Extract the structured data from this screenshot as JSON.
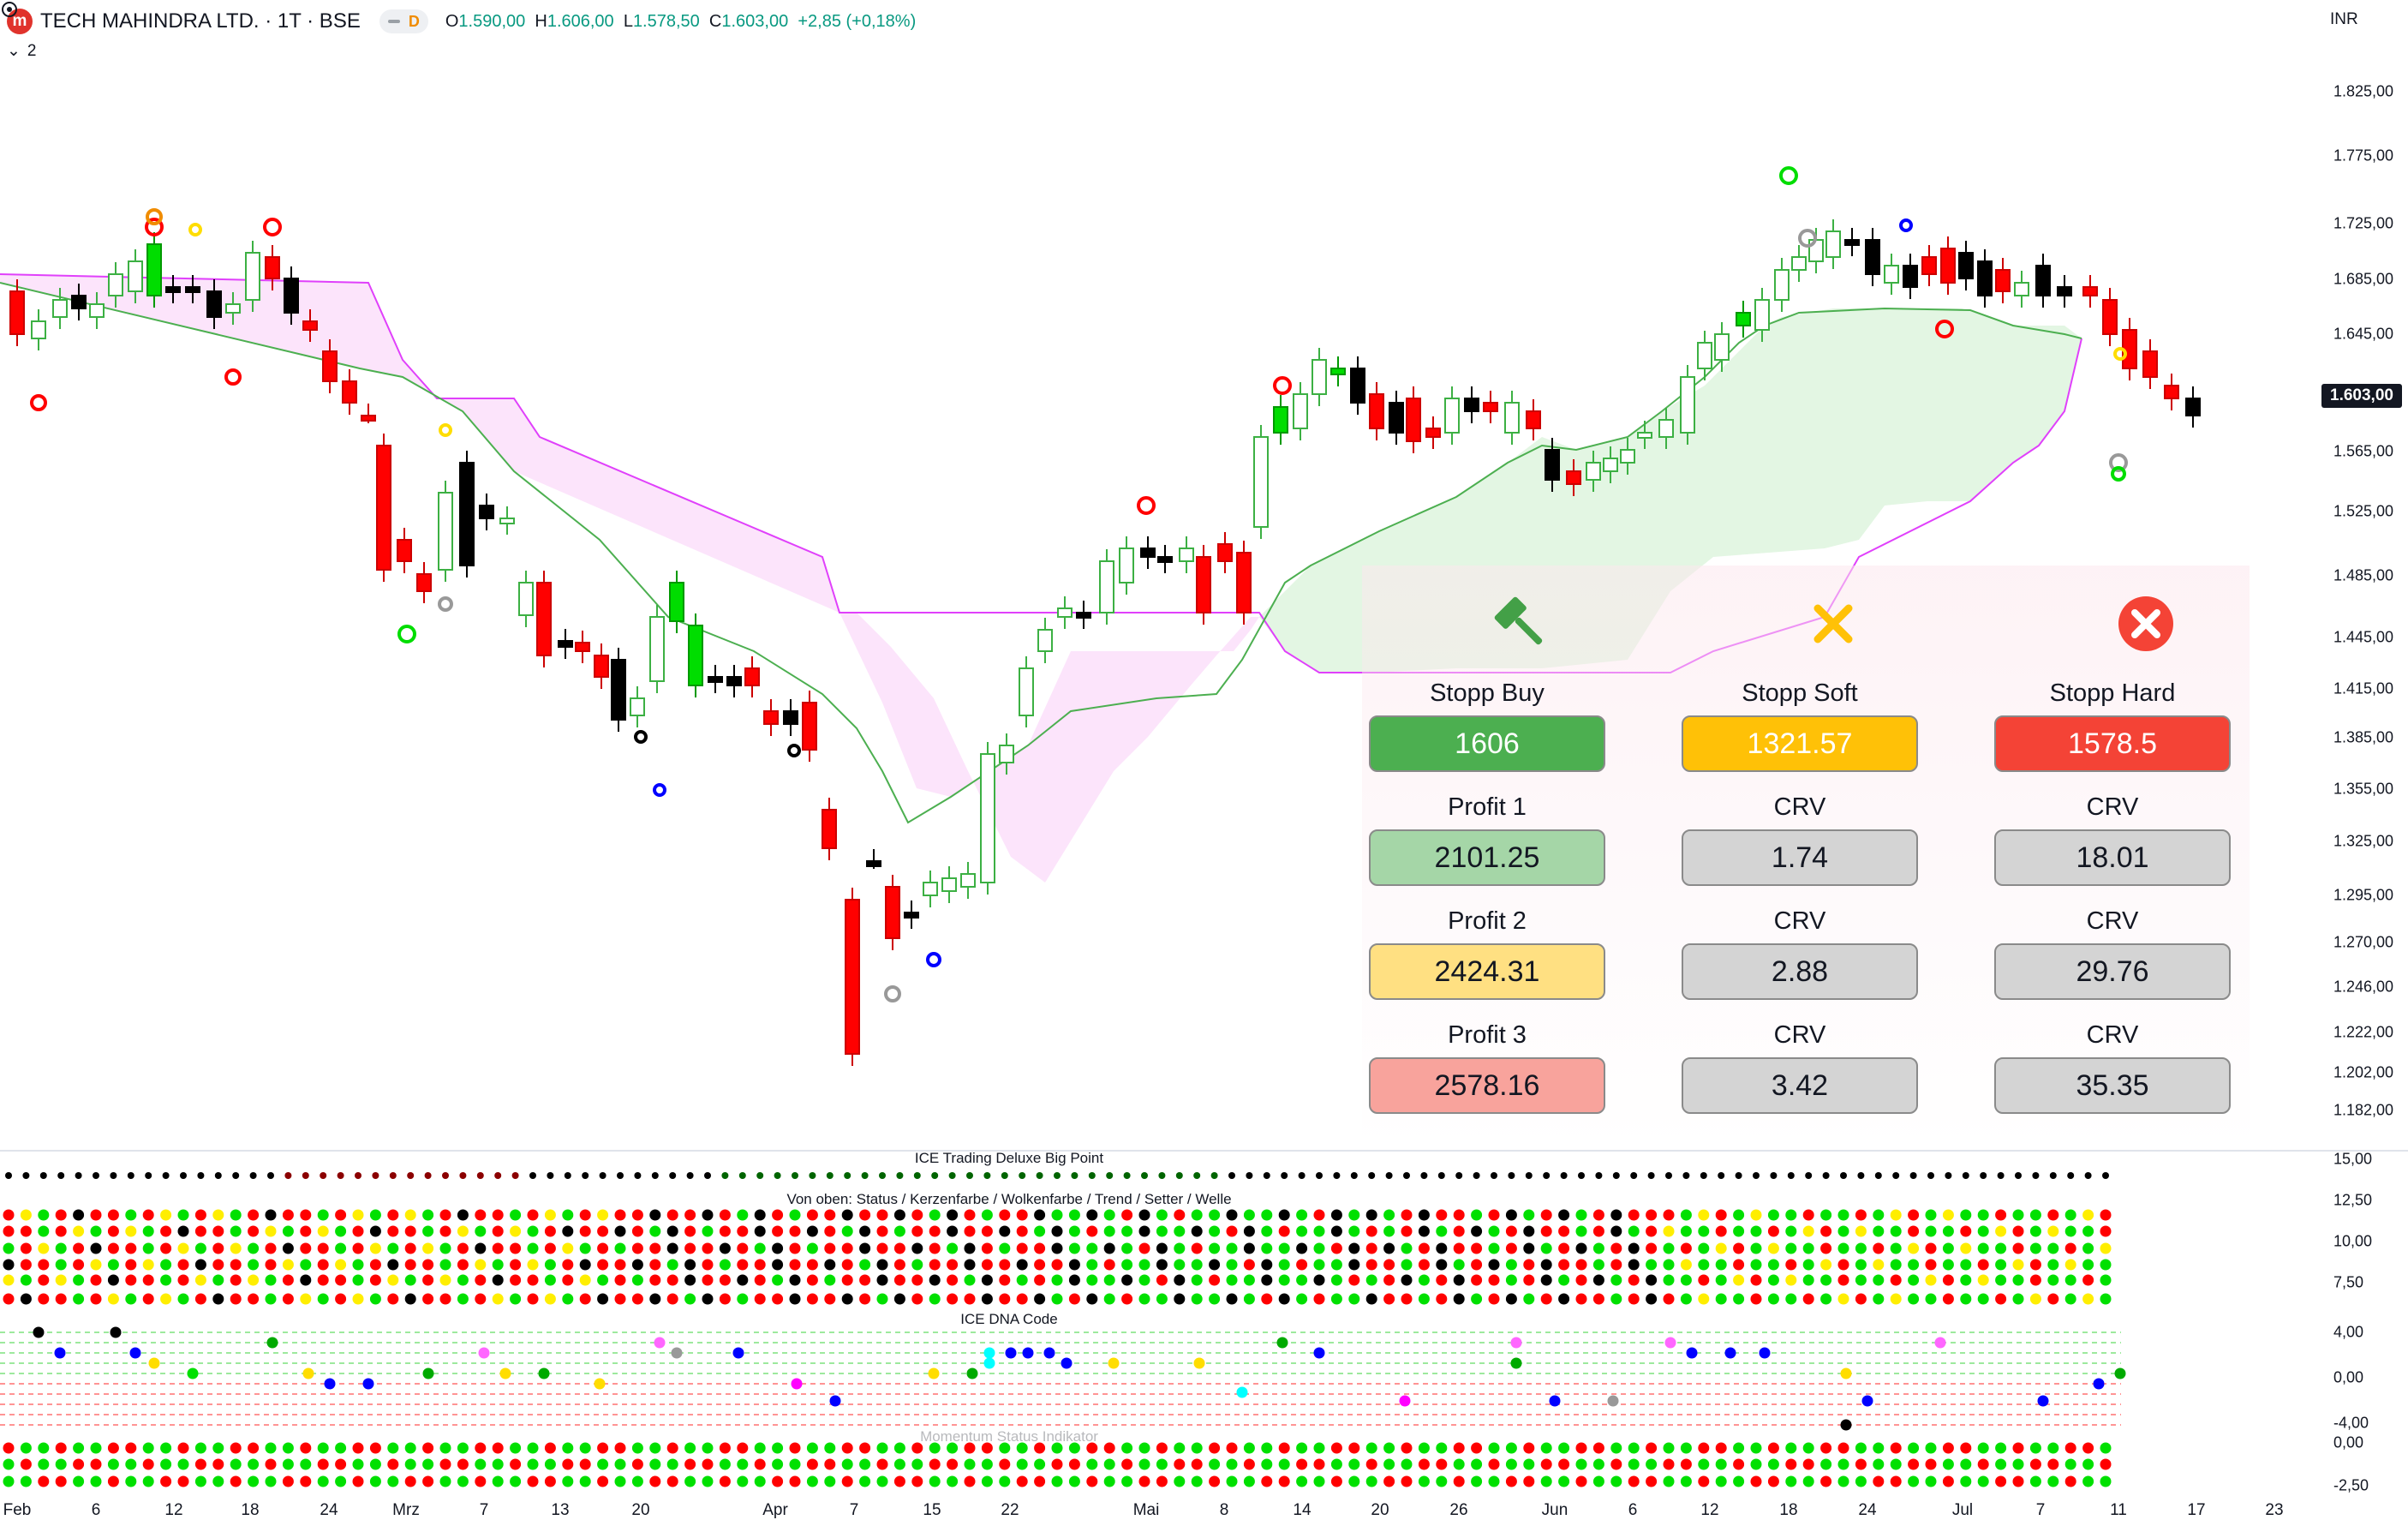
{
  "header": {
    "logo_letter": "m",
    "title": "TECH MAHINDRA LTD. · 1T · BSE",
    "interval_badge": "D",
    "ohlc": {
      "open_label": "O",
      "open": "1.590,00",
      "high_label": "H",
      "high": "1.606,00",
      "low_label": "L",
      "low": "1.578,50",
      "close_label": "C",
      "close": "1.603,00",
      "change": "+2,85 (+0,18%)"
    },
    "collapse_count": "2"
  },
  "currency": "INR",
  "last_price": "1.603,00",
  "price_axis": [
    "1.825,00",
    "1.775,00",
    "1.725,00",
    "1.685,00",
    "1.645,00",
    "1.603,00",
    "1.565,00",
    "1.525,00",
    "1.485,00",
    "1.445,00",
    "1.415,00",
    "1.385,00",
    "1.355,00",
    "1.325,00",
    "1.295,00",
    "1.270,00",
    "1.246,00",
    "1.222,00",
    "1.202,00",
    "1.182,00"
  ],
  "x_axis": [
    "Feb",
    "6",
    "12",
    "18",
    "24",
    "Mrz",
    "7",
    "13",
    "20",
    "Apr",
    "7",
    "15",
    "22",
    "Mai",
    "8",
    "14",
    "20",
    "26",
    "Jun",
    "6",
    "12",
    "18",
    "24",
    "Jul",
    "7",
    "11",
    "17",
    "23"
  ],
  "indicator_panes": {
    "big_point_title": "ICE Trading Deluxe Big Point",
    "status_title": "Von oben: Status / Kerzenfarbe / Wolkenfarbe / Trend / Setter / Welle",
    "dna_title": "ICE DNA Code",
    "momentum_title": "Momentum Status Indikator",
    "axis_labels": [
      "15,00",
      "12,50",
      "10,00",
      "7,50",
      "4,00",
      "0,00",
      "-4,00",
      "0,00",
      "-2,50"
    ]
  },
  "panel": {
    "icons": [
      "gavel-icon",
      "x-mark-icon",
      "error-circle-icon"
    ],
    "rows": [
      {
        "label": "Stopp Buy",
        "value": "1606",
        "color": "#4caf50"
      },
      {
        "label": "Stopp Soft",
        "value": "1321.57",
        "color": "#ffc107"
      },
      {
        "label": "Stopp Hard",
        "value": "1578.5",
        "color": "#f44336"
      },
      {
        "label": "Profit 1",
        "value": "2101.25",
        "color": "#a5d6a7"
      },
      {
        "label": "CRV",
        "value": "1.74",
        "color": "#d4d4d4"
      },
      {
        "label": "CRV",
        "value": "18.01",
        "color": "#d4d4d4"
      },
      {
        "label": "Profit 2",
        "value": "2424.31",
        "color": "#ffe082"
      },
      {
        "label": "CRV",
        "value": "2.88",
        "color": "#d4d4d4"
      },
      {
        "label": "CRV",
        "value": "29.76",
        "color": "#d4d4d4"
      },
      {
        "label": "Profit 3",
        "value": "2578.16",
        "color": "#f8a39c"
      },
      {
        "label": "CRV",
        "value": "3.42",
        "color": "#d4d4d4"
      },
      {
        "label": "CRV",
        "value": "35.35",
        "color": "#d4d4d4"
      }
    ]
  },
  "colors": {
    "bull": "#00e000",
    "bear": "#ff0000",
    "cloud_bull": "#e8f8e8",
    "cloud_bear": "#fbe4fb",
    "cloud_line_green": "#4caf50",
    "cloud_line_pink": "#e040fb"
  }
}
